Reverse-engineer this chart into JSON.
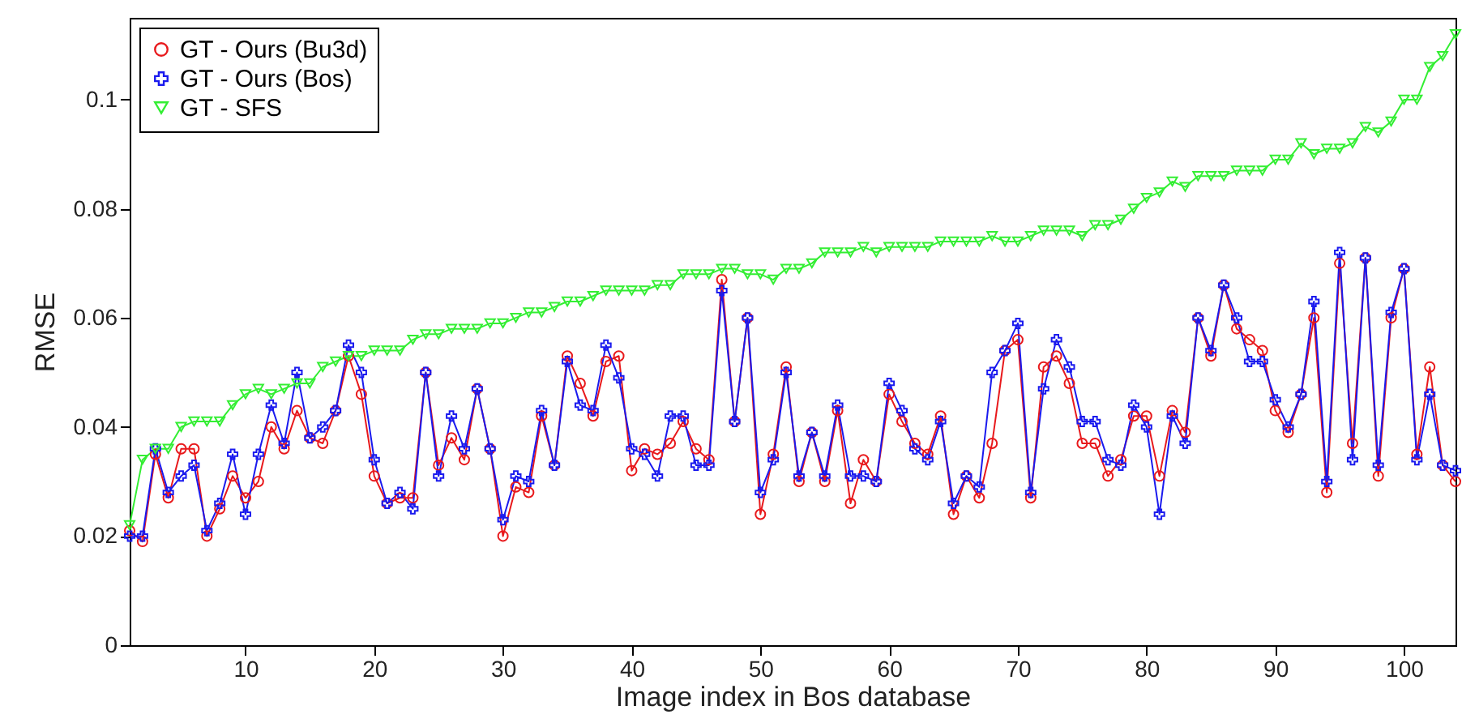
{
  "chart_data": {
    "type": "line",
    "xlabel": "Image index in Bos database",
    "ylabel": "RMSE",
    "x": [
      1,
      2,
      3,
      4,
      5,
      6,
      7,
      8,
      9,
      10,
      11,
      12,
      13,
      14,
      15,
      16,
      17,
      18,
      19,
      20,
      21,
      22,
      23,
      24,
      25,
      26,
      27,
      28,
      29,
      30,
      31,
      32,
      33,
      34,
      35,
      36,
      37,
      38,
      39,
      40,
      41,
      42,
      43,
      44,
      45,
      46,
      47,
      48,
      49,
      50,
      51,
      52,
      53,
      54,
      55,
      56,
      57,
      58,
      59,
      60,
      61,
      62,
      63,
      64,
      65,
      66,
      67,
      68,
      69,
      70,
      71,
      72,
      73,
      74,
      75,
      76,
      77,
      78,
      79,
      80,
      81,
      82,
      83,
      84,
      85,
      86,
      87,
      88,
      89,
      90,
      91,
      92,
      93,
      94,
      95,
      96,
      97,
      98,
      99,
      100,
      101,
      102,
      103,
      104
    ],
    "series": [
      {
        "name": "GT - Ours (Bu3d)",
        "color": "#e8191c",
        "marker": "circle",
        "values": [
          0.021,
          0.019,
          0.035,
          0.027,
          0.036,
          0.036,
          0.02,
          0.025,
          0.031,
          0.027,
          0.03,
          0.04,
          0.036,
          0.043,
          0.038,
          0.037,
          0.043,
          0.053,
          0.046,
          0.031,
          0.026,
          0.027,
          0.027,
          0.05,
          0.033,
          0.038,
          0.034,
          0.047,
          0.036,
          0.02,
          0.029,
          0.028,
          0.042,
          0.033,
          0.053,
          0.048,
          0.042,
          0.052,
          0.053,
          0.032,
          0.036,
          0.035,
          0.037,
          0.041,
          0.036,
          0.034,
          0.067,
          0.041,
          0.06,
          0.024,
          0.035,
          0.051,
          0.03,
          0.039,
          0.03,
          0.043,
          0.026,
          0.034,
          0.03,
          0.046,
          0.041,
          0.037,
          0.035,
          0.042,
          0.024,
          0.031,
          0.027,
          0.037,
          0.054,
          0.056,
          0.027,
          0.051,
          0.053,
          0.048,
          0.037,
          0.037,
          0.031,
          0.034,
          0.042,
          0.042,
          0.031,
          0.043,
          0.039,
          0.06,
          0.053,
          0.066,
          0.058,
          0.056,
          0.054,
          0.043,
          0.039,
          0.046,
          0.06,
          0.028,
          0.07,
          0.037,
          0.071,
          0.031,
          0.06,
          0.069,
          0.035,
          0.051,
          0.033,
          0.03
        ]
      },
      {
        "name": "GT - Ours (Bos)",
        "color": "#1a1aee",
        "marker": "cross",
        "values": [
          0.02,
          0.02,
          0.036,
          0.028,
          0.031,
          0.033,
          0.021,
          0.026,
          0.035,
          0.024,
          0.035,
          0.044,
          0.037,
          0.05,
          0.038,
          0.04,
          0.043,
          0.055,
          0.05,
          0.034,
          0.026,
          0.028,
          0.025,
          0.05,
          0.031,
          0.042,
          0.036,
          0.047,
          0.036,
          0.023,
          0.031,
          0.03,
          0.043,
          0.033,
          0.052,
          0.044,
          0.043,
          0.055,
          0.049,
          0.036,
          0.035,
          0.031,
          0.042,
          0.042,
          0.033,
          0.033,
          0.065,
          0.041,
          0.06,
          0.028,
          0.034,
          0.05,
          0.031,
          0.039,
          0.031,
          0.044,
          0.031,
          0.031,
          0.03,
          0.048,
          0.043,
          0.036,
          0.034,
          0.041,
          0.026,
          0.031,
          0.029,
          0.05,
          0.054,
          0.059,
          0.028,
          0.047,
          0.056,
          0.051,
          0.041,
          0.041,
          0.034,
          0.033,
          0.044,
          0.04,
          0.024,
          0.042,
          0.037,
          0.06,
          0.054,
          0.066,
          0.06,
          0.052,
          0.052,
          0.045,
          0.04,
          0.046,
          0.063,
          0.03,
          0.072,
          0.034,
          0.071,
          0.033,
          0.061,
          0.069,
          0.034,
          0.046,
          0.033,
          0.032
        ]
      },
      {
        "name": "GT - SFS",
        "color": "#33ee33",
        "marker": "triangle",
        "values": [
          0.022,
          0.034,
          0.036,
          0.036,
          0.04,
          0.041,
          0.041,
          0.041,
          0.044,
          0.046,
          0.047,
          0.046,
          0.047,
          0.048,
          0.048,
          0.051,
          0.052,
          0.053,
          0.053,
          0.054,
          0.054,
          0.054,
          0.056,
          0.057,
          0.057,
          0.058,
          0.058,
          0.058,
          0.059,
          0.059,
          0.06,
          0.061,
          0.061,
          0.062,
          0.063,
          0.063,
          0.064,
          0.065,
          0.065,
          0.065,
          0.065,
          0.066,
          0.066,
          0.068,
          0.068,
          0.068,
          0.069,
          0.069,
          0.068,
          0.068,
          0.067,
          0.069,
          0.069,
          0.07,
          0.072,
          0.072,
          0.072,
          0.073,
          0.072,
          0.073,
          0.073,
          0.073,
          0.073,
          0.074,
          0.074,
          0.074,
          0.074,
          0.075,
          0.074,
          0.074,
          0.075,
          0.076,
          0.076,
          0.076,
          0.075,
          0.077,
          0.077,
          0.078,
          0.08,
          0.082,
          0.083,
          0.085,
          0.084,
          0.086,
          0.086,
          0.086,
          0.087,
          0.087,
          0.087,
          0.089,
          0.089,
          0.092,
          0.09,
          0.091,
          0.091,
          0.092,
          0.095,
          0.094,
          0.096,
          0.1,
          0.1,
          0.106,
          0.108,
          0.112
        ]
      }
    ],
    "xlim": [
      1,
      104
    ],
    "xticks": [
      10,
      20,
      30,
      40,
      50,
      60,
      70,
      80,
      90,
      100
    ],
    "ylim": [
      0,
      0.115
    ],
    "yticks": [
      0,
      0.02,
      0.04,
      0.06,
      0.08,
      0.1
    ],
    "grid": false,
    "legend": "top left",
    "line_style": "solid"
  }
}
